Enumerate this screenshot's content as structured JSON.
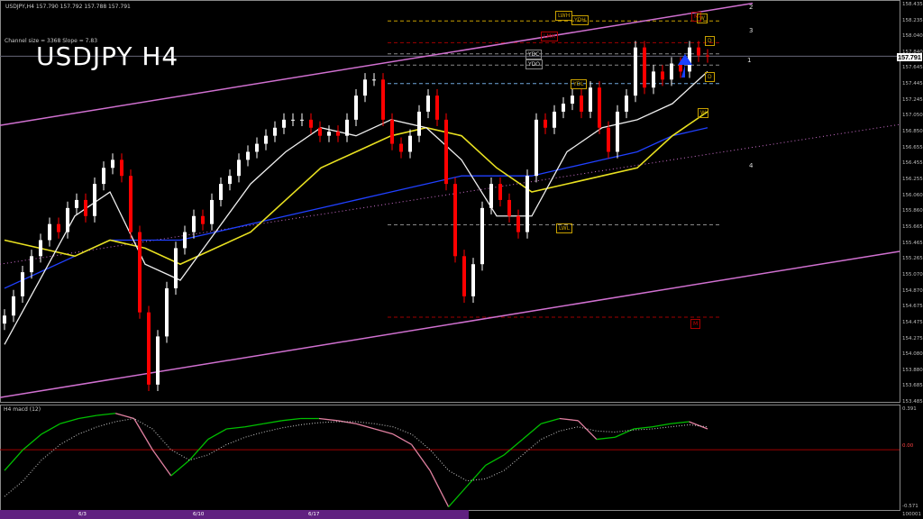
{
  "header": {
    "symbol_line": "USDJPY,H4  157.790 157.792 157.788 157.791",
    "title": "USDJPY H4",
    "channel_info": "Channel size = 3368 Slope = 7.83",
    "macd_label": "H4  macd (12)"
  },
  "chart_data": {
    "type": "candlestick",
    "title": "USDJPY H4",
    "ylim": [
      153.485,
      158.435
    ],
    "y_ticks": [
      "158.435",
      "158.235",
      "158.040",
      "157.840",
      "157.645",
      "157.445",
      "157.245",
      "157.050",
      "156.850",
      "156.655",
      "156.455",
      "156.255",
      "156.060",
      "155.860",
      "155.665",
      "155.465",
      "155.265",
      "155.070",
      "154.870",
      "154.675",
      "154.475",
      "154.275",
      "154.080",
      "153.880",
      "153.685",
      "153.485"
    ],
    "current_price": "157.791",
    "x_tick_labels": [
      "6/3",
      "6/10",
      "6/17"
    ],
    "closes": [
      154.56,
      154.8,
      155.1,
      155.3,
      155.5,
      155.7,
      155.6,
      155.9,
      156.0,
      155.8,
      156.2,
      156.4,
      156.5,
      156.3,
      155.6,
      154.6,
      153.7,
      154.3,
      154.9,
      155.4,
      155.6,
      155.8,
      155.7,
      156.0,
      156.2,
      156.3,
      156.5,
      156.6,
      156.7,
      156.8,
      156.9,
      157.0,
      157.0,
      157.0,
      156.9,
      156.8,
      156.85,
      156.8,
      157.0,
      157.3,
      157.5,
      157.5,
      157.0,
      156.7,
      156.6,
      156.8,
      157.1,
      157.3,
      157.0,
      156.2,
      155.3,
      154.8,
      155.2,
      155.9,
      156.2,
      156.0,
      155.8,
      155.6,
      156.3,
      157.0,
      156.9,
      157.1,
      157.2,
      157.3,
      157.1,
      157.4,
      156.9,
      156.6,
      157.1,
      157.3,
      157.9,
      157.4,
      157.6,
      157.5,
      157.7,
      157.6,
      157.9,
      157.8,
      157.79
    ],
    "channel": {
      "upper": [
        156.93,
        158.45
      ],
      "lower": [
        153.54,
        155.36
      ],
      "mid": [
        155.2,
        156.94
      ]
    },
    "levels": [
      {
        "label": "YDH",
        "price": 158.23,
        "color": "#c8a000"
      },
      {
        "label": "LMH",
        "price": 157.96,
        "color": "#a00000"
      },
      {
        "label": "YDC",
        "price": 157.82,
        "color": "#888888"
      },
      {
        "label": "YDO",
        "price": 157.68,
        "color": "#888888"
      },
      {
        "label": "YDL",
        "price": 157.45,
        "color": "#6fa8dc"
      },
      {
        "label": "LWL",
        "price": 155.69,
        "color": "#888888"
      },
      {
        "label": "M",
        "price": 154.54,
        "color": "#a00000"
      }
    ],
    "boxes": [
      "LWH",
      "YDH",
      "LMH",
      "YDC",
      "YDO",
      "YDL",
      "M",
      "W",
      "D",
      "D",
      "W",
      "LWL",
      "M"
    ],
    "wave_labels": [
      "1",
      "2",
      "3",
      "4"
    ],
    "ma_white": [
      154.2,
      155.0,
      155.8,
      156.1,
      155.2,
      155.0,
      155.6,
      156.2,
      156.6,
      156.9,
      156.8,
      157.0,
      156.9,
      156.5,
      155.8,
      155.8,
      156.6,
      156.9,
      157.0,
      157.2,
      157.6
    ],
    "ma_yellow": [
      155.5,
      155.4,
      155.3,
      155.5,
      155.4,
      155.2,
      155.4,
      155.6,
      156.0,
      156.4,
      156.6,
      156.8,
      156.9,
      156.8,
      156.4,
      156.1,
      156.2,
      156.3,
      156.4,
      156.8,
      157.1
    ],
    "ma_blue": [
      154.9,
      155.1,
      155.3,
      155.5,
      155.5,
      155.5,
      155.6,
      155.7,
      155.8,
      155.9,
      156.0,
      156.1,
      156.2,
      156.3,
      156.3,
      156.3,
      156.4,
      156.5,
      156.6,
      156.8,
      156.9
    ],
    "macd": {
      "ylim": [
        -0.571,
        0.391
      ],
      "zero_label": "0.00",
      "top_label": "0.391",
      "bottom_label": "-0.571",
      "main": [
        -0.2,
        0.0,
        0.15,
        0.25,
        0.3,
        0.33,
        0.35,
        0.3,
        0.0,
        -0.25,
        -0.1,
        0.1,
        0.2,
        0.22,
        0.25,
        0.28,
        0.3,
        0.3,
        0.28,
        0.25,
        0.2,
        0.15,
        0.05,
        -0.2,
        -0.55,
        -0.35,
        -0.15,
        -0.05,
        0.1,
        0.25,
        0.3,
        0.28,
        0.1,
        0.12,
        0.2,
        0.22,
        0.25,
        0.27,
        0.2
      ],
      "signal": [
        -0.45,
        -0.3,
        -0.1,
        0.05,
        0.15,
        0.22,
        0.27,
        0.3,
        0.2,
        0.0,
        -0.1,
        -0.05,
        0.05,
        0.12,
        0.17,
        0.21,
        0.24,
        0.26,
        0.27,
        0.27,
        0.25,
        0.22,
        0.15,
        0.0,
        -0.2,
        -0.3,
        -0.28,
        -0.2,
        -0.05,
        0.1,
        0.18,
        0.22,
        0.18,
        0.17,
        0.19,
        0.2,
        0.22,
        0.24,
        0.22
      ]
    },
    "footer_label": "100001",
    "colors": {
      "bull": "#ffffff",
      "bear": "#ff0000",
      "channel": "#d070d0",
      "macd_up": "#00c000",
      "macd_down": "#e080a0"
    }
  }
}
